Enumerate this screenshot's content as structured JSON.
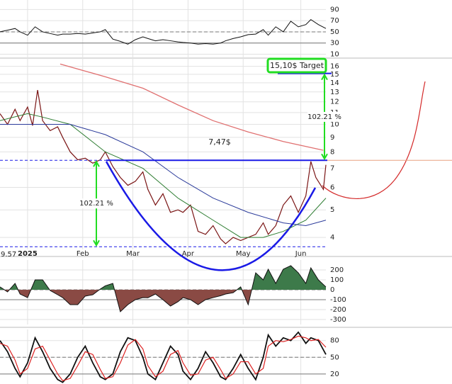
{
  "chart_data": [
    {
      "type": "line",
      "scale": "log",
      "grid": true,
      "ylim": [
        3.63,
        17.1
      ],
      "yticks": [
        4,
        5,
        6,
        7,
        8,
        9,
        10,
        11,
        12,
        13,
        14,
        15,
        16
      ],
      "xlim": [
        0,
        130
      ],
      "xticks": [
        {
          "value": 11,
          "label": "2025"
        },
        {
          "value": 33,
          "label": "Feb"
        },
        {
          "value": 53,
          "label": "Mar"
        },
        {
          "value": 75,
          "label": "Apr"
        },
        {
          "value": 97,
          "label": "May"
        },
        {
          "value": 120,
          "label": "Jun"
        }
      ],
      "corner_label": "9.57",
      "series": [
        {
          "color": "#7a1414",
          "width": 1.2,
          "x": [
            0,
            3,
            6,
            8,
            11,
            13,
            15,
            17,
            20,
            23,
            25,
            28,
            31,
            34,
            37,
            40,
            42,
            45,
            48,
            51,
            54,
            57,
            59,
            62,
            65,
            68,
            71,
            73,
            76,
            79,
            82,
            85,
            88,
            90,
            93,
            96,
            99,
            102,
            105,
            107,
            110,
            113,
            116,
            119,
            122,
            124,
            126,
            129,
            130
          ],
          "values": [
            10.9,
            10.0,
            11.3,
            10.3,
            11.5,
            9.9,
            13.2,
            10.3,
            9.5,
            9.8,
            9.0,
            8.0,
            7.5,
            7.6,
            7.3,
            7.5,
            8.0,
            7.1,
            6.5,
            6.1,
            6.3,
            6.8,
            5.9,
            5.2,
            5.7,
            4.9,
            5.0,
            4.9,
            5.2,
            4.2,
            4.1,
            4.4,
            3.95,
            3.8,
            4.0,
            3.9,
            4.0,
            4.1,
            4.5,
            4.1,
            4.4,
            5.2,
            5.6,
            4.9,
            5.6,
            7.4,
            6.5,
            5.9,
            7.2
          ]
        },
        {
          "color": "#e07070",
          "width": 1.3,
          "x": [
            24,
            42,
            57,
            71,
            85,
            99,
            113,
            129
          ],
          "values": [
            16.3,
            14.7,
            13.4,
            11.7,
            10.3,
            9.4,
            8.7,
            8.1
          ]
        },
        {
          "color": "#2e7d32",
          "width": 1,
          "x": [
            0,
            11,
            17,
            28,
            42,
            57,
            71,
            85,
            96,
            105,
            113,
            122,
            130
          ],
          "values": [
            10.3,
            10.9,
            10.6,
            10.0,
            8.0,
            7.0,
            5.5,
            4.6,
            4.0,
            4.0,
            4.2,
            4.6,
            5.5
          ]
        },
        {
          "color": "#2a3a9a",
          "width": 1,
          "x": [
            0,
            28,
            42,
            57,
            71,
            85,
            99,
            113,
            122,
            130
          ],
          "values": [
            10.0,
            10.0,
            9.2,
            8.0,
            6.5,
            5.5,
            4.9,
            4.5,
            4.4,
            4.6
          ]
        }
      ],
      "levels": [
        {
          "value": 7.47,
          "label": "7,47$",
          "color": "#1a1ae6"
        },
        {
          "value": 15.1,
          "label": "15,10$ Target",
          "color": "#1a1ae6"
        },
        {
          "value": 3.71,
          "color": "#1a1ae6"
        }
      ],
      "measures": [
        {
          "label": "102.21 %",
          "color": "#22dd22"
        },
        {
          "label": "102.21 %",
          "color": "#22dd22"
        }
      ]
    },
    {
      "type": "line",
      "grid": true,
      "ylim": [
        3,
        107
      ],
      "yticks": [
        10,
        30,
        50,
        70,
        90
      ],
      "xlim": [
        0,
        130
      ],
      "references": [
        {
          "value": 50,
          "style": "dashed"
        },
        {
          "value": 30,
          "style": "solid"
        }
      ],
      "x": [
        0,
        3,
        6,
        8,
        11,
        14,
        17,
        20,
        23,
        25,
        28,
        31,
        34,
        37,
        40,
        42,
        45,
        48,
        51,
        54,
        57,
        59,
        62,
        65,
        68,
        71,
        73,
        76,
        79,
        82,
        85,
        88,
        90,
        93,
        96,
        99,
        102,
        105,
        107,
        110,
        113,
        116,
        119,
        122,
        124,
        127,
        130
      ],
      "series": [
        {
          "color": "#111111",
          "width": 1,
          "values": [
            50,
            53,
            56,
            50,
            44,
            59,
            50,
            47,
            44,
            46,
            46,
            47,
            46,
            48,
            50,
            54,
            37,
            33,
            28,
            36,
            41,
            38,
            34,
            36,
            34,
            32,
            31,
            30,
            28,
            29,
            28,
            30,
            34,
            38,
            41,
            45,
            46,
            54,
            44,
            59,
            50,
            69,
            59,
            63,
            72,
            63,
            56
          ]
        }
      ]
    },
    {
      "type": "area",
      "grid": true,
      "ylim": [
        -350,
        300
      ],
      "yticks": [
        200,
        100,
        0,
        -100,
        -200,
        -300
      ],
      "xlim": [
        0,
        130
      ],
      "references": [
        {
          "value": 0,
          "style": "dashed"
        },
        {
          "value": -100,
          "style": "solid"
        }
      ],
      "fill_above": "#3d7a4a",
      "fill_below": "#8a4a44",
      "x": [
        0,
        3,
        6,
        8,
        11,
        14,
        17,
        20,
        23,
        25,
        28,
        31,
        34,
        37,
        40,
        42,
        45,
        48,
        51,
        54,
        57,
        59,
        62,
        65,
        68,
        71,
        73,
        76,
        79,
        82,
        85,
        88,
        90,
        93,
        96,
        99,
        102,
        105,
        107,
        110,
        113,
        116,
        119,
        122,
        124,
        127,
        130
      ],
      "series": [
        {
          "color": "#111111",
          "width": 1,
          "values": [
            29,
            -21,
            64,
            -43,
            -79,
            100,
            100,
            -7,
            -50,
            -79,
            -150,
            -150,
            -64,
            -50,
            7,
            40,
            64,
            -221,
            -150,
            -100,
            -79,
            -80,
            -43,
            -100,
            -164,
            -120,
            -79,
            -100,
            -150,
            -100,
            -79,
            -60,
            -43,
            -30,
            29,
            -150,
            171,
            100,
            207,
            64,
            207,
            243,
            171,
            64,
            221,
            100,
            29
          ]
        }
      ]
    },
    {
      "type": "line",
      "grid": true,
      "ylim": [
        2,
        100
      ],
      "yticks": [
        20,
        50,
        80
      ],
      "xlim": [
        0,
        130
      ],
      "references": [
        {
          "value": 50,
          "style": "dashed"
        },
        {
          "value": 20,
          "style": "solid"
        }
      ],
      "x": [
        0,
        3,
        6,
        8,
        11,
        14,
        17,
        20,
        23,
        25,
        28,
        31,
        34,
        37,
        40,
        42,
        45,
        48,
        51,
        54,
        57,
        59,
        62,
        65,
        68,
        71,
        73,
        76,
        79,
        82,
        85,
        88,
        90,
        93,
        96,
        99,
        102,
        105,
        107,
        110,
        113,
        116,
        119,
        122,
        124,
        127,
        130
      ],
      "series": [
        {
          "color": "#111111",
          "width": 1.8,
          "values": [
            80,
            60,
            30,
            15,
            40,
            85,
            60,
            30,
            10,
            5,
            20,
            50,
            70,
            40,
            15,
            10,
            20,
            60,
            85,
            80,
            50,
            20,
            10,
            40,
            70,
            55,
            25,
            10,
            30,
            60,
            40,
            15,
            10,
            30,
            55,
            30,
            10,
            50,
            90,
            70,
            85,
            80,
            95,
            75,
            85,
            80,
            55
          ]
        },
        {
          "color": "#dd2222",
          "width": 1.2,
          "values": [
            75,
            70,
            45,
            20,
            30,
            65,
            70,
            45,
            20,
            8,
            12,
            35,
            60,
            55,
            28,
            12,
            15,
            40,
            72,
            82,
            65,
            35,
            15,
            25,
            55,
            62,
            40,
            18,
            20,
            45,
            50,
            28,
            12,
            20,
            42,
            42,
            20,
            30,
            70,
            80,
            78,
            82,
            88,
            85,
            80,
            82,
            68
          ]
        }
      ]
    }
  ]
}
